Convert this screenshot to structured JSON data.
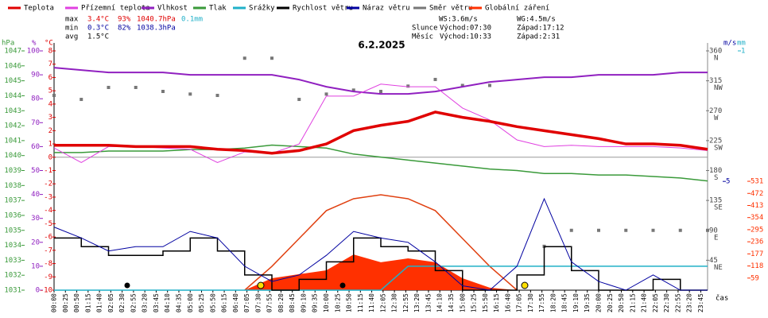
{
  "chart_data": {
    "type": "line",
    "title": "6.2.2025",
    "legend": [
      "Teplota",
      "Přízemní teplota",
      "Vlhkost",
      "Tlak",
      "Srážky",
      "Rychlost větru",
      "Náraz větru",
      "Směr větru",
      "Globální záření"
    ],
    "legend_colors": [
      "#e00000",
      "#e040e0",
      "#9020c0",
      "#3a9a3a",
      "#20b0c8",
      "#000000",
      "#0000a0",
      "#777777",
      "#ff3000"
    ],
    "stats": {
      "max": {
        "label": "max",
        "temperature": "3.4°C",
        "humidity": "93%",
        "pressure": "1040.7hPa",
        "rain": "0.1mm"
      },
      "min": {
        "label": "min",
        "temperature": "0.3°C",
        "humidity": "82%",
        "pressure": "1038.3hPa"
      },
      "avg": {
        "label": "avg",
        "temperature": "1.5°C"
      }
    },
    "info": {
      "ws": "WS:3.6m/s",
      "wg": "WG:4.5m/s",
      "sun": "Slunce",
      "sunrise": "Východ:07:30",
      "sunset": "Západ:17:12",
      "moon": "Měsíc",
      "moonrise": "Východ:10:33",
      "moonset": "Západ:2:31"
    },
    "x_label": "čas",
    "xlim": [
      0,
      1440
    ],
    "xticks": [
      {
        "value": 0,
        "label": "00:00"
      },
      {
        "value": 25,
        "label": "00:25"
      },
      {
        "value": 50,
        "label": "00:50"
      },
      {
        "value": 75,
        "label": "01:15"
      },
      {
        "value": 100,
        "label": "01:40"
      },
      {
        "value": 125,
        "label": "02:05"
      },
      {
        "value": 150,
        "label": "02:30"
      },
      {
        "value": 175,
        "label": "02:55"
      },
      {
        "value": 200,
        "label": "03:20"
      },
      {
        "value": 225,
        "label": "03:45"
      },
      {
        "value": 250,
        "label": "04:10"
      },
      {
        "value": 275,
        "label": "04:35"
      },
      {
        "value": 300,
        "label": "05:00"
      },
      {
        "value": 325,
        "label": "05:25"
      },
      {
        "value": 350,
        "label": "05:50"
      },
      {
        "value": 375,
        "label": "06:15"
      },
      {
        "value": 400,
        "label": "06:40"
      },
      {
        "value": 425,
        "label": "07:05"
      },
      {
        "value": 450,
        "label": "07:30"
      },
      {
        "value": 475,
        "label": "07:55"
      },
      {
        "value": 500,
        "label": "08:20"
      },
      {
        "value": 525,
        "label": "08:45"
      },
      {
        "value": 550,
        "label": "09:10"
      },
      {
        "value": 575,
        "label": "09:35"
      },
      {
        "value": 600,
        "label": "10:00"
      },
      {
        "value": 625,
        "label": "10:25"
      },
      {
        "value": 650,
        "label": "10:50"
      },
      {
        "value": 675,
        "label": "11:15"
      },
      {
        "value": 700,
        "label": "11:40"
      },
      {
        "value": 725,
        "label": "12:05"
      },
      {
        "value": 750,
        "label": "12:30"
      },
      {
        "value": 775,
        "label": "12:55"
      },
      {
        "value": 800,
        "label": "13:20"
      },
      {
        "value": 825,
        "label": "13:45"
      },
      {
        "value": 850,
        "label": "14:10"
      },
      {
        "value": 875,
        "label": "14:35"
      },
      {
        "value": 900,
        "label": "15:00"
      },
      {
        "value": 925,
        "label": "15:25"
      },
      {
        "value": 950,
        "label": "15:50"
      },
      {
        "value": 975,
        "label": "16:15"
      },
      {
        "value": 1000,
        "label": "16:40"
      },
      {
        "value": 1025,
        "label": "17:05"
      },
      {
        "value": 1050,
        "label": "17:30"
      },
      {
        "value": 1075,
        "label": "17:55"
      },
      {
        "value": 1100,
        "label": "18:20"
      },
      {
        "value": 1125,
        "label": "18:45"
      },
      {
        "value": 1150,
        "label": "19:10"
      },
      {
        "value": 1175,
        "label": "19:35"
      },
      {
        "value": 1200,
        "label": "20:00"
      },
      {
        "value": 1225,
        "label": "20:25"
      },
      {
        "value": 1250,
        "label": "20:50"
      },
      {
        "value": 1275,
        "label": "21:15"
      },
      {
        "value": 1300,
        "label": "21:40"
      },
      {
        "value": 1325,
        "label": "22:05"
      },
      {
        "value": 1350,
        "label": "22:30"
      },
      {
        "value": 1375,
        "label": "22:55"
      },
      {
        "value": 1400,
        "label": "23:20"
      },
      {
        "value": 1425,
        "label": "23:45"
      }
    ],
    "axes": {
      "pressure": {
        "unit": "hPa",
        "lim": [
          1031,
          1047
        ],
        "ticks": [
          1047,
          1046,
          1045,
          1044,
          1043,
          1042,
          1041,
          1040,
          1039,
          1038,
          1037,
          1036,
          1035,
          1034,
          1033,
          1032,
          1031
        ],
        "color": "#3a9a3a"
      },
      "humidity": {
        "unit": "%",
        "lim": [
          0,
          100
        ],
        "ticks": [
          100,
          90,
          80,
          70,
          60,
          50,
          40,
          30,
          20,
          10,
          0
        ],
        "color": "#9020c0"
      },
      "temperature": {
        "unit": "°C",
        "lim": [
          -10,
          8
        ],
        "ticks": [
          8,
          7,
          6,
          5,
          4,
          3,
          2,
          1,
          0,
          -1,
          -2,
          -3,
          -4,
          -5,
          -6,
          -7,
          -8,
          -9,
          -10
        ],
        "color": "#e00000"
      },
      "direction": {
        "lim": [
          0,
          360
        ],
        "ticks": [
          360,
          315,
          270,
          225,
          180,
          135,
          90,
          45
        ],
        "compass": [
          "N",
          "NW",
          "W",
          "SW",
          "S",
          "SE",
          "E",
          "NE"
        ],
        "color": "#777777"
      },
      "wind": {
        "unit": "m/s",
        "lim": [
          0,
          11
        ],
        "ticks": [
          5
        ],
        "color": "#0000a0"
      },
      "rain": {
        "unit": "mm",
        "lim": [
          0,
          1
        ],
        "ticks": [
          1
        ],
        "color": "#20b0c8"
      },
      "solar": {
        "lim": [
          0,
          1167
        ],
        "ticks": [
          531,
          472,
          413,
          354,
          295,
          236,
          177,
          118,
          59
        ],
        "color": "#ff3000"
      }
    },
    "x": [
      0,
      60,
      120,
      180,
      240,
      300,
      360,
      420,
      480,
      540,
      600,
      660,
      720,
      780,
      840,
      900,
      960,
      1020,
      1080,
      1140,
      1200,
      1260,
      1320,
      1380,
      1440
    ],
    "series": [
      {
        "name": "Globální záření",
        "axis": "solar",
        "kind": "area",
        "color": "#ff3000",
        "values": [
          null,
          null,
          null,
          null,
          null,
          null,
          null,
          0,
          58,
          78,
          97,
          174,
          136,
          155,
          136,
          58,
          12,
          0,
          null,
          null,
          null,
          null,
          null,
          null,
          null
        ]
      },
      {
        "axis": "solar",
        "kind": "line",
        "color": "#e04010",
        "width": 1.5,
        "values": [
          null,
          null,
          null,
          null,
          null,
          null,
          null,
          0,
          116,
          252,
          388,
          446,
          465,
          446,
          388,
          252,
          116,
          0,
          null,
          null,
          null,
          null,
          null,
          null,
          null
        ]
      },
      {
        "name": "Směr větru",
        "axis": "direction",
        "kind": "dots",
        "color": "#777777",
        "values": [
          293,
          287,
          305,
          305,
          299,
          295,
          293,
          349,
          349,
          287,
          295,
          301,
          299,
          307,
          317,
          308,
          308,
          null,
          66,
          90,
          90,
          90,
          90,
          90,
          90
        ]
      },
      {
        "name": "Tlak",
        "axis": "pressure",
        "kind": "line",
        "color": "#3a9a3a",
        "width": 1.5,
        "values": [
          1040.2,
          1040.2,
          1040.3,
          1040.3,
          1040.3,
          1040.4,
          1040.4,
          1040.5,
          1040.7,
          1040.6,
          1040.5,
          1040.1,
          1039.9,
          1039.7,
          1039.5,
          1039.3,
          1039.1,
          1039.0,
          1038.8,
          1038.8,
          1038.7,
          1038.7,
          1038.6,
          1038.5,
          1038.3
        ]
      },
      {
        "name": "Vlhkost",
        "axis": "humidity",
        "kind": "line",
        "color": "#9020c0",
        "width": 2,
        "values": [
          93,
          92,
          91,
          91,
          91,
          90,
          90,
          90,
          90,
          88,
          85,
          83,
          82,
          82,
          83,
          85,
          87,
          88,
          89,
          89,
          90,
          90,
          90,
          91,
          91
        ]
      },
      {
        "name": "Přízemní teplota",
        "axis": "temperature",
        "kind": "line",
        "color": "#e040e0",
        "width": 1,
        "values": [
          0.7,
          -0.4,
          0.8,
          0.8,
          0.7,
          0.6,
          -0.4,
          0.4,
          0.3,
          1.0,
          4.6,
          4.6,
          5.5,
          5.3,
          5.3,
          3.7,
          2.8,
          1.3,
          0.8,
          0.9,
          0.8,
          0.8,
          0.8,
          0.7,
          0.5
        ]
      },
      {
        "name": "Teplota",
        "axis": "temperature",
        "kind": "line",
        "color": "#e00000",
        "width": 3.5,
        "values": [
          0.9,
          0.9,
          0.9,
          0.8,
          0.8,
          0.8,
          0.6,
          0.5,
          0.3,
          0.5,
          1.0,
          2.0,
          2.4,
          2.7,
          3.4,
          3.0,
          2.7,
          2.3,
          2.0,
          1.7,
          1.4,
          1.0,
          1.0,
          0.9,
          0.6
        ]
      },
      {
        "name": "Srážky",
        "axis": "rain",
        "kind": "line",
        "color": "#20b0c8",
        "width": 1.5,
        "values": [
          0,
          0,
          0,
          0,
          0,
          0,
          0,
          0,
          0,
          0,
          0,
          0,
          0,
          0.1,
          0.1,
          0.1,
          0.1,
          0.1,
          0.1,
          0.1,
          0.1,
          0.1,
          0.1,
          0.1,
          0.1
        ]
      },
      {
        "name": "Rychlost větru",
        "axis": "wind",
        "kind": "step",
        "color": "#000000",
        "width": 1.5,
        "values": [
          2.4,
          2.0,
          1.6,
          1.6,
          1.8,
          2.4,
          1.8,
          0.7,
          0,
          0.5,
          1.3,
          2.4,
          2.0,
          1.8,
          0.9,
          0,
          0,
          0.7,
          2.0,
          0.9,
          0,
          0,
          0.5,
          0,
          0
        ]
      },
      {
        "name": "Náraz větru",
        "axis": "wind",
        "kind": "line",
        "color": "#0000a0",
        "width": 1,
        "values": [
          2.9,
          2.4,
          1.8,
          2.0,
          2.0,
          2.7,
          2.4,
          1.1,
          0.4,
          0.7,
          1.6,
          2.7,
          2.4,
          2.2,
          1.3,
          0.2,
          0,
          1.1,
          4.2,
          1.3,
          0.4,
          0,
          0.7,
          0,
          0
        ]
      }
    ]
  }
}
